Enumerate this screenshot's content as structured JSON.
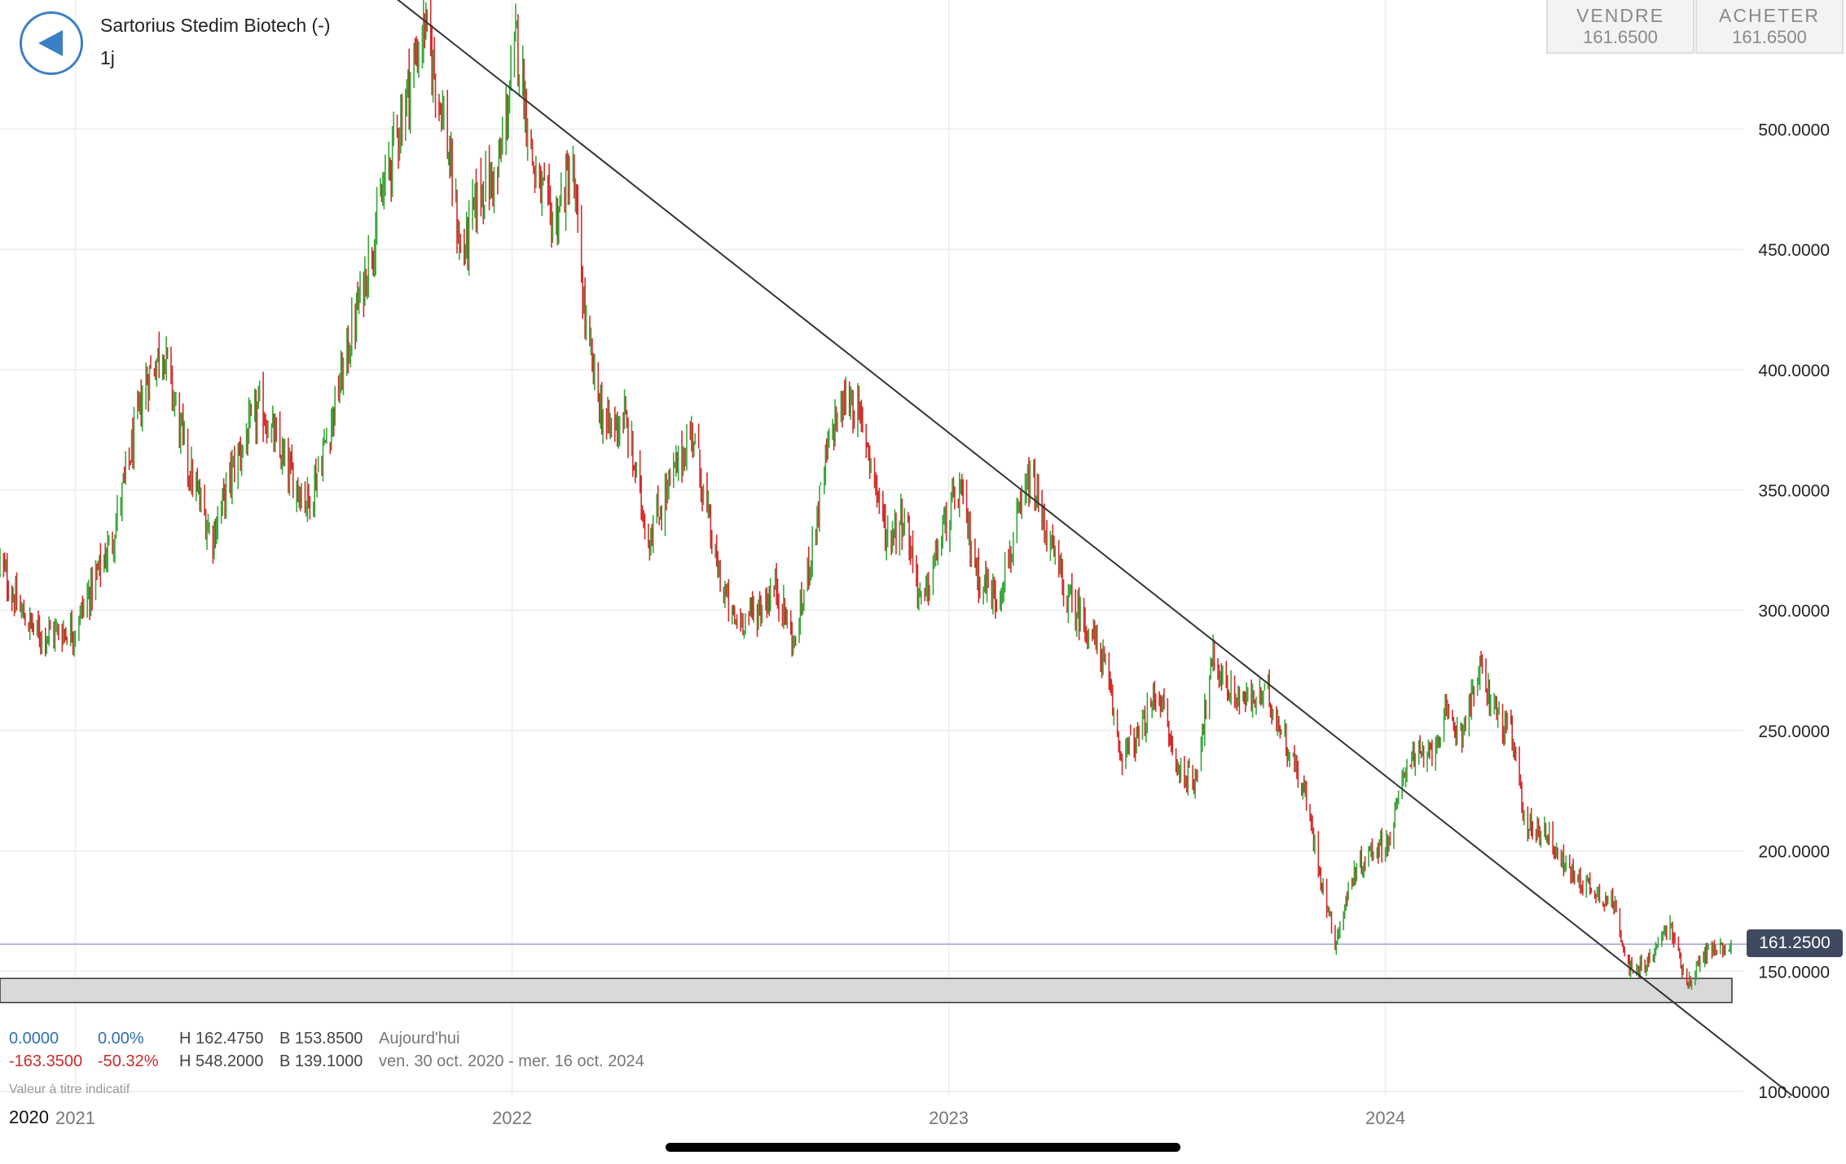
{
  "header": {
    "title": "Sartorius Stedim Biotech (-)",
    "timeframe": "1j",
    "back_icon": "back-arrow-icon"
  },
  "quotes": {
    "sell_label": "VENDRE",
    "sell_value": "161.6500",
    "buy_label": "ACHETER",
    "buy_value": "161.6500"
  },
  "current_price_label": "161.2500",
  "stats": {
    "today_change": "0.0000",
    "today_change_pct": "0.00%",
    "today_high": "H 162.4750",
    "today_low": "B 153.8500",
    "today_label": "Aujourd'hui",
    "period_change": "-163.3500",
    "period_change_pct": "-50.32%",
    "period_high": "H 548.2000",
    "period_low": "B 139.1000",
    "period_label": "ven. 30 oct. 2020 - mer. 16 oct. 2024"
  },
  "disclaimer": "Valeur à titre indicatif",
  "first_year_label": "2020",
  "colors": {
    "up": "#3aa63a",
    "down": "#d42a2a",
    "trendline": "#333333",
    "support_zone": "#d9d9d9",
    "price_line": "#9aa3d8",
    "price_tag": "#3d4a60",
    "accent": "#3b7fc4"
  },
  "chart_data": {
    "type": "candlestick",
    "title": "Sartorius Stedim Biotech (-)",
    "interval": "1j",
    "x_range": [
      "2020-10-30",
      "2024-10-16"
    ],
    "y_range": [
      100,
      550
    ],
    "y_ticks": [
      {
        "value": 100,
        "label": "100.0000"
      },
      {
        "value": 150,
        "label": "150.0000"
      },
      {
        "value": 200,
        "label": "200.0000"
      },
      {
        "value": 250,
        "label": "250.0000"
      },
      {
        "value": 300,
        "label": "300.0000"
      },
      {
        "value": 350,
        "label": "350.0000"
      },
      {
        "value": 400,
        "label": "400.0000"
      },
      {
        "value": 450,
        "label": "450.0000"
      },
      {
        "value": 500,
        "label": "500.0000"
      }
    ],
    "x_ticks": [
      {
        "date": "2021-01-01",
        "label": "2021"
      },
      {
        "date": "2022-01-01",
        "label": "2022"
      },
      {
        "date": "2023-01-01",
        "label": "2023"
      },
      {
        "date": "2024-01-01",
        "label": "2024"
      }
    ],
    "current_price": 161.25,
    "trendline": [
      {
        "date": "2021-09-20",
        "value": 558
      },
      {
        "date": "2024-10-16",
        "value": 100
      }
    ],
    "support_zone": {
      "low": 137,
      "high": 147
    },
    "closes": [
      {
        "date": "2020-10-30",
        "value": 320
      },
      {
        "date": "2020-11-15",
        "value": 300
      },
      {
        "date": "2020-12-01",
        "value": 290
      },
      {
        "date": "2020-12-31",
        "value": 292
      },
      {
        "date": "2021-02-01",
        "value": 330
      },
      {
        "date": "2021-03-01",
        "value": 395
      },
      {
        "date": "2021-03-15",
        "value": 410
      },
      {
        "date": "2021-04-05",
        "value": 360
      },
      {
        "date": "2021-04-25",
        "value": 330
      },
      {
        "date": "2021-05-15",
        "value": 362
      },
      {
        "date": "2021-06-05",
        "value": 385
      },
      {
        "date": "2021-06-25",
        "value": 360
      },
      {
        "date": "2021-07-15",
        "value": 345
      },
      {
        "date": "2021-08-01",
        "value": 375
      },
      {
        "date": "2021-08-20",
        "value": 415
      },
      {
        "date": "2021-09-05",
        "value": 450
      },
      {
        "date": "2021-09-25",
        "value": 495
      },
      {
        "date": "2021-10-10",
        "value": 525
      },
      {
        "date": "2021-10-20",
        "value": 543
      },
      {
        "date": "2021-11-05",
        "value": 505
      },
      {
        "date": "2021-11-20",
        "value": 445
      },
      {
        "date": "2021-12-05",
        "value": 475
      },
      {
        "date": "2021-12-20",
        "value": 480
      },
      {
        "date": "2022-01-05",
        "value": 538
      },
      {
        "date": "2022-01-20",
        "value": 480
      },
      {
        "date": "2022-02-05",
        "value": 460
      },
      {
        "date": "2022-02-20",
        "value": 485
      },
      {
        "date": "2022-03-05",
        "value": 410
      },
      {
        "date": "2022-03-20",
        "value": 375
      },
      {
        "date": "2022-04-05",
        "value": 380
      },
      {
        "date": "2022-04-25",
        "value": 330
      },
      {
        "date": "2022-05-15",
        "value": 355
      },
      {
        "date": "2022-06-01",
        "value": 375
      },
      {
        "date": "2022-06-20",
        "value": 320
      },
      {
        "date": "2022-07-05",
        "value": 295
      },
      {
        "date": "2022-07-25",
        "value": 300
      },
      {
        "date": "2022-08-10",
        "value": 310
      },
      {
        "date": "2022-08-25",
        "value": 285
      },
      {
        "date": "2022-09-10",
        "value": 330
      },
      {
        "date": "2022-09-25",
        "value": 375
      },
      {
        "date": "2022-10-10",
        "value": 390
      },
      {
        "date": "2022-10-25",
        "value": 370
      },
      {
        "date": "2022-11-10",
        "value": 330
      },
      {
        "date": "2022-11-25",
        "value": 340
      },
      {
        "date": "2022-12-10",
        "value": 300
      },
      {
        "date": "2022-12-25",
        "value": 330
      },
      {
        "date": "2023-01-10",
        "value": 350
      },
      {
        "date": "2023-01-25",
        "value": 315
      },
      {
        "date": "2023-02-10",
        "value": 305
      },
      {
        "date": "2023-02-25",
        "value": 330
      },
      {
        "date": "2023-03-10",
        "value": 355
      },
      {
        "date": "2023-03-25",
        "value": 330
      },
      {
        "date": "2023-04-10",
        "value": 305
      },
      {
        "date": "2023-04-25",
        "value": 295
      },
      {
        "date": "2023-05-10",
        "value": 280
      },
      {
        "date": "2023-05-25",
        "value": 240
      },
      {
        "date": "2023-06-10",
        "value": 248
      },
      {
        "date": "2023-06-25",
        "value": 268
      },
      {
        "date": "2023-07-10",
        "value": 235
      },
      {
        "date": "2023-07-25",
        "value": 228
      },
      {
        "date": "2023-08-10",
        "value": 280
      },
      {
        "date": "2023-08-25",
        "value": 265
      },
      {
        "date": "2023-09-10",
        "value": 262
      },
      {
        "date": "2023-09-25",
        "value": 265
      },
      {
        "date": "2023-10-10",
        "value": 245
      },
      {
        "date": "2023-10-25",
        "value": 225
      },
      {
        "date": "2023-11-10",
        "value": 185
      },
      {
        "date": "2023-11-20",
        "value": 162
      },
      {
        "date": "2023-12-05",
        "value": 190
      },
      {
        "date": "2023-12-20",
        "value": 200
      },
      {
        "date": "2024-01-05",
        "value": 205
      },
      {
        "date": "2024-01-20",
        "value": 240
      },
      {
        "date": "2024-02-05",
        "value": 238
      },
      {
        "date": "2024-02-20",
        "value": 255
      },
      {
        "date": "2024-03-05",
        "value": 250
      },
      {
        "date": "2024-03-20",
        "value": 275
      },
      {
        "date": "2024-04-05",
        "value": 255
      },
      {
        "date": "2024-04-15",
        "value": 248
      },
      {
        "date": "2024-04-28",
        "value": 210
      },
      {
        "date": "2024-05-15",
        "value": 208
      },
      {
        "date": "2024-06-01",
        "value": 192
      },
      {
        "date": "2024-06-20",
        "value": 185
      },
      {
        "date": "2024-07-10",
        "value": 178
      },
      {
        "date": "2024-07-25",
        "value": 148
      },
      {
        "date": "2024-08-10",
        "value": 155
      },
      {
        "date": "2024-08-25",
        "value": 170
      },
      {
        "date": "2024-09-10",
        "value": 145
      },
      {
        "date": "2024-09-25",
        "value": 158
      },
      {
        "date": "2024-10-16",
        "value": 161
      }
    ]
  }
}
